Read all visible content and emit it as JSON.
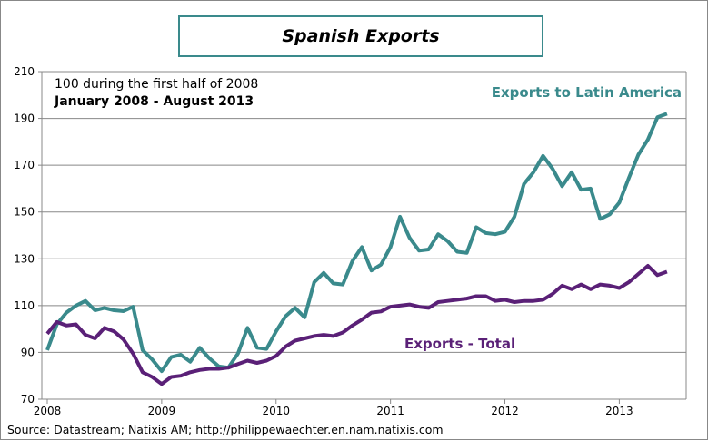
{
  "chart_data": {
    "type": "line",
    "title": "Spanish Exports",
    "subtitle": "100 during the first half of 2008",
    "period": "January 2008 - August 2013",
    "source": "Source: Datastream; Natixis AM; http://philippewaechter.en.nam.natixis.com",
    "ylim": [
      70,
      210
    ],
    "yticks": [
      "70",
      "90",
      "110",
      "130",
      "150",
      "170",
      "190",
      "210"
    ],
    "xticks": [
      "2008",
      "2009",
      "2010",
      "2011",
      "2012",
      "2013"
    ],
    "grid": "horizontal",
    "x_start": "2008-01",
    "x_frequency": "monthly",
    "series": [
      {
        "name": "Exports to Latin America",
        "color": "#3a8a8c",
        "values": [
          91,
          102,
          107,
          110,
          112,
          108,
          109,
          108,
          107.6,
          109.5,
          91,
          87,
          82,
          88,
          89,
          86,
          92,
          87.5,
          84,
          83.5,
          89.5,
          100.5,
          92,
          91.5,
          99,
          105.5,
          109,
          105,
          120,
          124,
          119.5,
          119,
          129,
          135,
          125,
          127.5,
          135,
          148,
          139,
          133.5,
          134,
          140.5,
          137.5,
          133,
          132.5,
          143.5,
          141,
          140.5,
          141.5,
          148,
          162,
          167,
          174,
          168.5,
          161,
          167,
          159.5,
          160,
          147,
          149,
          154,
          164.5,
          174.5,
          181,
          190.5,
          192
        ]
      },
      {
        "name": "Exports - Total",
        "color": "#5a2077",
        "values": [
          98,
          103,
          101.5,
          102,
          97.5,
          96,
          100.5,
          99,
          95.5,
          89.5,
          81.5,
          79.5,
          76.5,
          79.5,
          80,
          81.5,
          82.5,
          83,
          83,
          83.5,
          85,
          86.5,
          85.5,
          86.5,
          88.5,
          92.5,
          95,
          96,
          97,
          97.5,
          97,
          98.5,
          101.5,
          104,
          107,
          107.5,
          109.5,
          110,
          110.5,
          109.5,
          109,
          111.5,
          112,
          112.5,
          113,
          114,
          114,
          112,
          112.5,
          111.5,
          112,
          112,
          112.5,
          115,
          118.5,
          117,
          119,
          117,
          119,
          118.5,
          117.5,
          120,
          123.5,
          127,
          123,
          124.5
        ]
      }
    ]
  }
}
